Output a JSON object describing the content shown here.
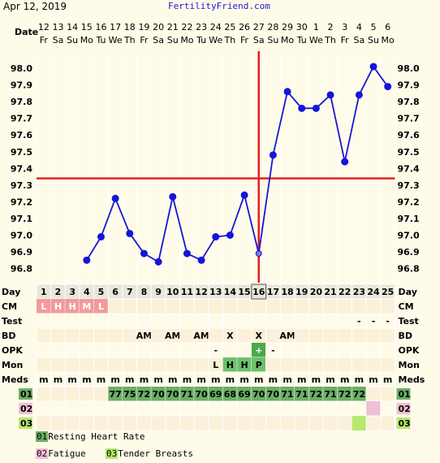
{
  "header": {
    "date": "Apr 12, 2019",
    "site": "FertilityFriend.com"
  },
  "rows": {
    "date_label": "Date",
    "day_label": "Day",
    "cm_label": "CM",
    "test_label": "Test",
    "bd_label": "BD",
    "opk_label": "OPK",
    "mon_label": "Mon",
    "meds_label": "Meds",
    "c01_label": "01",
    "c02_label": "02",
    "c03_label": "03"
  },
  "days": [
    {
      "date": "12",
      "wd": "Fr",
      "day": "1",
      "cm": "L",
      "meds": "m"
    },
    {
      "date": "13",
      "wd": "Sa",
      "day": "2",
      "cm": "H",
      "meds": "m"
    },
    {
      "date": "14",
      "wd": "Su",
      "day": "3",
      "cm": "H",
      "meds": "m"
    },
    {
      "date": "15",
      "wd": "Mo",
      "day": "4",
      "cm": "M",
      "meds": "m",
      "temp": 96.85
    },
    {
      "date": "16",
      "wd": "Tu",
      "day": "5",
      "cm": "L",
      "meds": "m",
      "temp": 96.99
    },
    {
      "date": "17",
      "wd": "We",
      "day": "6",
      "meds": "m",
      "temp": 97.22,
      "c01": "77"
    },
    {
      "date": "18",
      "wd": "Th",
      "day": "7",
      "meds": "m",
      "temp": 97.01,
      "c01": "75"
    },
    {
      "date": "19",
      "wd": "Fr",
      "day": "8",
      "bd": "AM",
      "meds": "m",
      "temp": 96.89,
      "c01": "72"
    },
    {
      "date": "20",
      "wd": "Sa",
      "day": "9",
      "meds": "m",
      "temp": 96.84,
      "c01": "70"
    },
    {
      "date": "21",
      "wd": "Su",
      "day": "10",
      "bd": "AM",
      "meds": "m",
      "temp": 97.23,
      "c01": "70"
    },
    {
      "date": "22",
      "wd": "Mo",
      "day": "11",
      "meds": "m",
      "temp": 96.89,
      "c01": "71"
    },
    {
      "date": "23",
      "wd": "Tu",
      "day": "12",
      "bd": "AM",
      "meds": "m",
      "temp": 96.85,
      "c01": "70"
    },
    {
      "date": "24",
      "wd": "We",
      "day": "13",
      "opk": "-",
      "mon": "L",
      "meds": "m",
      "temp": 96.99,
      "c01": "69"
    },
    {
      "date": "25",
      "wd": "Th",
      "day": "14",
      "bd": "X",
      "mon": "H",
      "meds": "m",
      "temp": 97.0,
      "c01": "68"
    },
    {
      "date": "26",
      "wd": "Fr",
      "day": "15",
      "mon": "H",
      "meds": "m",
      "temp": 97.24,
      "c01": "69"
    },
    {
      "date": "27",
      "wd": "Sa",
      "day": "16",
      "bd": "X",
      "opk": "+",
      "mon": "P",
      "meds": "m",
      "temp": 96.89,
      "c01": "70"
    },
    {
      "date": "28",
      "wd": "Su",
      "day": "17",
      "opk": "-",
      "meds": "m",
      "temp": 97.48,
      "c01": "70"
    },
    {
      "date": "29",
      "wd": "Mo",
      "day": "18",
      "bd": "AM",
      "meds": "m",
      "temp": 97.86,
      "c01": "71"
    },
    {
      "date": "30",
      "wd": "Tu",
      "day": "19",
      "meds": "m",
      "temp": 97.76,
      "c01": "71"
    },
    {
      "date": "1",
      "wd": "We",
      "day": "20",
      "meds": "m",
      "temp": 97.76,
      "c01": "72"
    },
    {
      "date": "2",
      "wd": "Th",
      "day": "21",
      "meds": "m",
      "temp": 97.84,
      "c01": "71"
    },
    {
      "date": "3",
      "wd": "Fr",
      "day": "22",
      "meds": "m",
      "temp": 97.44,
      "c01": "72"
    },
    {
      "date": "4",
      "wd": "Sa",
      "day": "23",
      "test": "-",
      "meds": "m",
      "temp": 97.84,
      "c01": "72",
      "c03": true
    },
    {
      "date": "5",
      "wd": "Su",
      "day": "24",
      "test": "-",
      "meds": "m",
      "temp": 98.01,
      "c02": true
    },
    {
      "date": "6",
      "wd": "Mo",
      "day": "25",
      "test": "-",
      "meds": "m",
      "temp": 97.89
    }
  ],
  "chart_data": {
    "type": "line",
    "title": "",
    "xlabel": "",
    "ylabel": "",
    "ylim": [
      96.7,
      98.1
    ],
    "y_ticks": [
      "98.0",
      "97.9",
      "97.8",
      "97.7",
      "97.6",
      "97.5",
      "97.4",
      "97.3",
      "97.2",
      "97.1",
      "97.0",
      "96.9",
      "96.8"
    ],
    "coverline": 97.34,
    "ovulation_day": "16",
    "colors": {
      "line": "#1515d8",
      "marker": "#1515d8",
      "coverline": "#dd2222"
    }
  },
  "legend": {
    "items": [
      {
        "code": "01",
        "text": "Resting Heart Rate",
        "color": "#6cae65"
      },
      {
        "code": "02",
        "text": "Fatigue",
        "color": "#f1bfd6"
      },
      {
        "code": "03",
        "text": "Tender Breasts",
        "color": "#b8e86c"
      }
    ]
  },
  "colors": {
    "cm": "#f29a9a",
    "mon": "#6cc06c",
    "opk_plus": "#4aaa4a",
    "c01": "#6cae65",
    "c02": "#f1bfd6",
    "c03": "#b8e86c",
    "row_alt": "#fbf0d6",
    "grid": "#ffffff"
  }
}
